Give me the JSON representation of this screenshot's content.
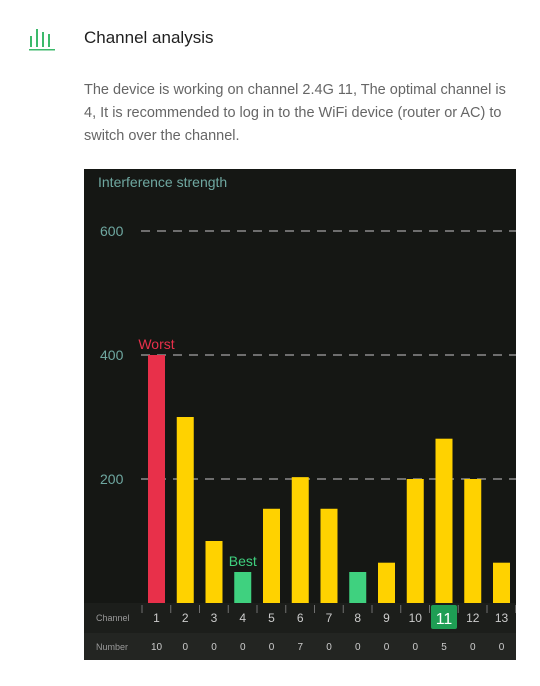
{
  "header": {
    "title": "Channel analysis",
    "icon": "bar-chart-icon"
  },
  "description": "The device is working on channel 2.4G 11, The optimal channel is 4, It is recommended to log in to the WiFi device (router or AC) to switch over the channel.",
  "colors": {
    "accent": "#3cb96b",
    "worst": "#e8304a",
    "best": "#3fd17f",
    "normal": "#ffd200",
    "axis_text": "#6fa8a1",
    "panel_bg": "#151714"
  },
  "chart_data": {
    "type": "bar",
    "title": "Interference strength",
    "ylim": [
      0,
      600
    ],
    "yticks": [
      200,
      400,
      600
    ],
    "grid": true,
    "categories": [
      "1",
      "2",
      "3",
      "4",
      "5",
      "6",
      "7",
      "8",
      "9",
      "10",
      "11",
      "12",
      "13"
    ],
    "values": [
      400,
      300,
      100,
      50,
      152,
      203,
      152,
      50,
      65,
      200,
      265,
      200,
      65
    ],
    "numbers": [
      10,
      0,
      0,
      0,
      0,
      7,
      0,
      0,
      0,
      0,
      5,
      0,
      0
    ],
    "row_labels": {
      "channel": "Channel",
      "number": "Number"
    },
    "annotations": {
      "worst": {
        "label": "Worst",
        "channel": "1"
      },
      "best": {
        "label": "Best",
        "channel": "4"
      }
    },
    "current_channel": "11"
  }
}
